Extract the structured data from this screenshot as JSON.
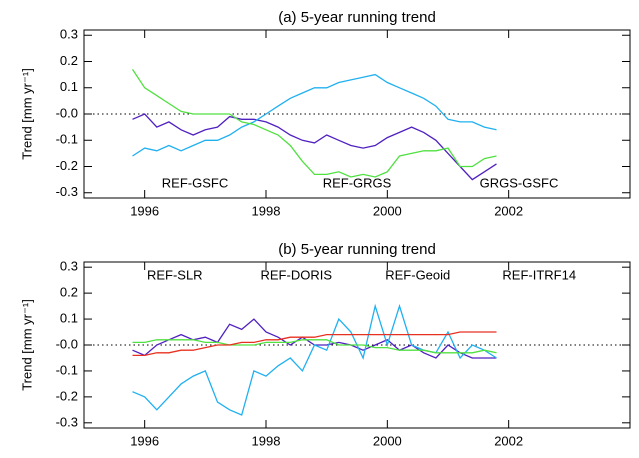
{
  "chart_data": [
    {
      "type": "line",
      "title": "(a) 5-year running trend",
      "ylabel": "Trend [mm yr⁻¹]",
      "xlim": [
        1995,
        2004
      ],
      "xticks": [
        1996,
        1998,
        2000,
        2002
      ],
      "ylim": [
        -0.32,
        0.32
      ],
      "yticks": [
        0.3,
        0.2,
        0.1,
        {
          "value": 0,
          "label": "-0.0"
        },
        -0.1,
        -0.2,
        -0.3
      ],
      "zero_line": true,
      "legend": "lower center",
      "x": [
        1995.8,
        1996.0,
        1996.2,
        1996.4,
        1996.6,
        1996.8,
        1997.0,
        1997.2,
        1997.4,
        1997.6,
        1997.8,
        1998.0,
        1998.2,
        1998.4,
        1998.6,
        1998.8,
        1999.0,
        1999.2,
        1999.4,
        1999.6,
        1999.8,
        2000.0,
        2000.2,
        2000.4,
        2000.6,
        2000.8,
        2001.0,
        2001.2,
        2001.4,
        2001.6,
        2001.8
      ],
      "series": [
        {
          "name": "REF-GSFC",
          "color": "#5020c0",
          "values": [
            -0.02,
            0.0,
            -0.05,
            -0.03,
            -0.06,
            -0.08,
            -0.06,
            -0.05,
            -0.01,
            -0.02,
            -0.02,
            -0.03,
            -0.05,
            -0.08,
            -0.1,
            -0.11,
            -0.08,
            -0.1,
            -0.12,
            -0.13,
            -0.12,
            -0.09,
            -0.07,
            -0.05,
            -0.07,
            -0.1,
            -0.15,
            -0.2,
            -0.25,
            -0.22,
            -0.19
          ]
        },
        {
          "name": "REF-GRGS",
          "color": "#20b0f0",
          "values": [
            -0.16,
            -0.13,
            -0.14,
            -0.12,
            -0.14,
            -0.12,
            -0.1,
            -0.1,
            -0.08,
            -0.05,
            -0.03,
            0.0,
            0.03,
            0.06,
            0.08,
            0.1,
            0.1,
            0.12,
            0.13,
            0.14,
            0.15,
            0.12,
            0.1,
            0.08,
            0.06,
            0.03,
            -0.02,
            -0.03,
            -0.03,
            -0.05,
            -0.06
          ]
        },
        {
          "name": "GRGS-GSFC",
          "color": "#50e040",
          "values": [
            0.17,
            0.1,
            0.07,
            0.04,
            0.01,
            0.0,
            0.0,
            0.0,
            0.0,
            -0.03,
            -0.04,
            -0.06,
            -0.08,
            -0.12,
            -0.18,
            -0.23,
            -0.23,
            -0.22,
            -0.24,
            -0.23,
            -0.24,
            -0.22,
            -0.16,
            -0.15,
            -0.14,
            -0.14,
            -0.13,
            -0.2,
            -0.2,
            -0.17,
            -0.16
          ]
        }
      ]
    },
    {
      "type": "line",
      "title": "(b) 5-year running trend",
      "ylabel": "Trend [mm yr⁻¹]",
      "xlim": [
        1995,
        2004
      ],
      "xticks": [
        1996,
        1998,
        2000,
        2002
      ],
      "ylim": [
        -0.32,
        0.32
      ],
      "yticks": [
        0.3,
        0.2,
        0.1,
        {
          "value": 0,
          "label": "-0.0"
        },
        -0.1,
        -0.2,
        -0.3
      ],
      "zero_line": true,
      "legend": "upper center",
      "x": [
        1995.8,
        1996.0,
        1996.2,
        1996.4,
        1996.6,
        1996.8,
        1997.0,
        1997.2,
        1997.4,
        1997.6,
        1997.8,
        1998.0,
        1998.2,
        1998.4,
        1998.6,
        1998.8,
        1999.0,
        1999.2,
        1999.4,
        1999.6,
        1999.8,
        2000.0,
        2000.2,
        2000.4,
        2000.6,
        2000.8,
        2001.0,
        2001.2,
        2001.4,
        2001.6,
        2001.8
      ],
      "series": [
        {
          "name": "REF-SLR",
          "color": "#5020c0",
          "values": [
            -0.02,
            -0.04,
            0.0,
            0.02,
            0.04,
            0.02,
            0.03,
            0.01,
            0.08,
            0.06,
            0.1,
            0.05,
            0.03,
            0.0,
            0.03,
            0.0,
            0.0,
            0.01,
            0.0,
            -0.02,
            0.0,
            0.02,
            -0.02,
            0.0,
            -0.03,
            -0.05,
            0.0,
            -0.03,
            -0.05,
            -0.05,
            -0.05
          ]
        },
        {
          "name": "REF-DORIS",
          "color": "#20b0f0",
          "values": [
            -0.18,
            -0.2,
            -0.25,
            -0.2,
            -0.15,
            -0.12,
            -0.1,
            -0.22,
            -0.25,
            -0.27,
            -0.1,
            -0.12,
            -0.08,
            -0.05,
            -0.1,
            0.0,
            -0.02,
            0.1,
            0.05,
            -0.05,
            0.15,
            0.0,
            0.15,
            0.0,
            -0.02,
            -0.03,
            0.05,
            -0.05,
            0.0,
            -0.02,
            -0.05
          ]
        },
        {
          "name": "REF-Geoid",
          "color": "#50e040",
          "values": [
            0.01,
            0.01,
            0.02,
            0.02,
            0.02,
            0.02,
            0.01,
            0.01,
            0.0,
            0.0,
            0.0,
            0.01,
            0.01,
            0.01,
            0.02,
            0.02,
            0.02,
            0.0,
            0.0,
            0.0,
            -0.01,
            -0.01,
            -0.02,
            -0.02,
            -0.02,
            -0.03,
            -0.03,
            -0.03,
            -0.03,
            -0.02,
            -0.03
          ]
        },
        {
          "name": "REF-ITRF14",
          "color": "#e83020",
          "values": [
            -0.04,
            -0.04,
            -0.03,
            -0.03,
            -0.02,
            -0.02,
            -0.01,
            0.0,
            0.0,
            0.01,
            0.01,
            0.02,
            0.02,
            0.03,
            0.03,
            0.03,
            0.04,
            0.04,
            0.04,
            0.04,
            0.04,
            0.04,
            0.04,
            0.04,
            0.04,
            0.04,
            0.04,
            0.05,
            0.05,
            0.05,
            0.05
          ]
        }
      ]
    }
  ]
}
